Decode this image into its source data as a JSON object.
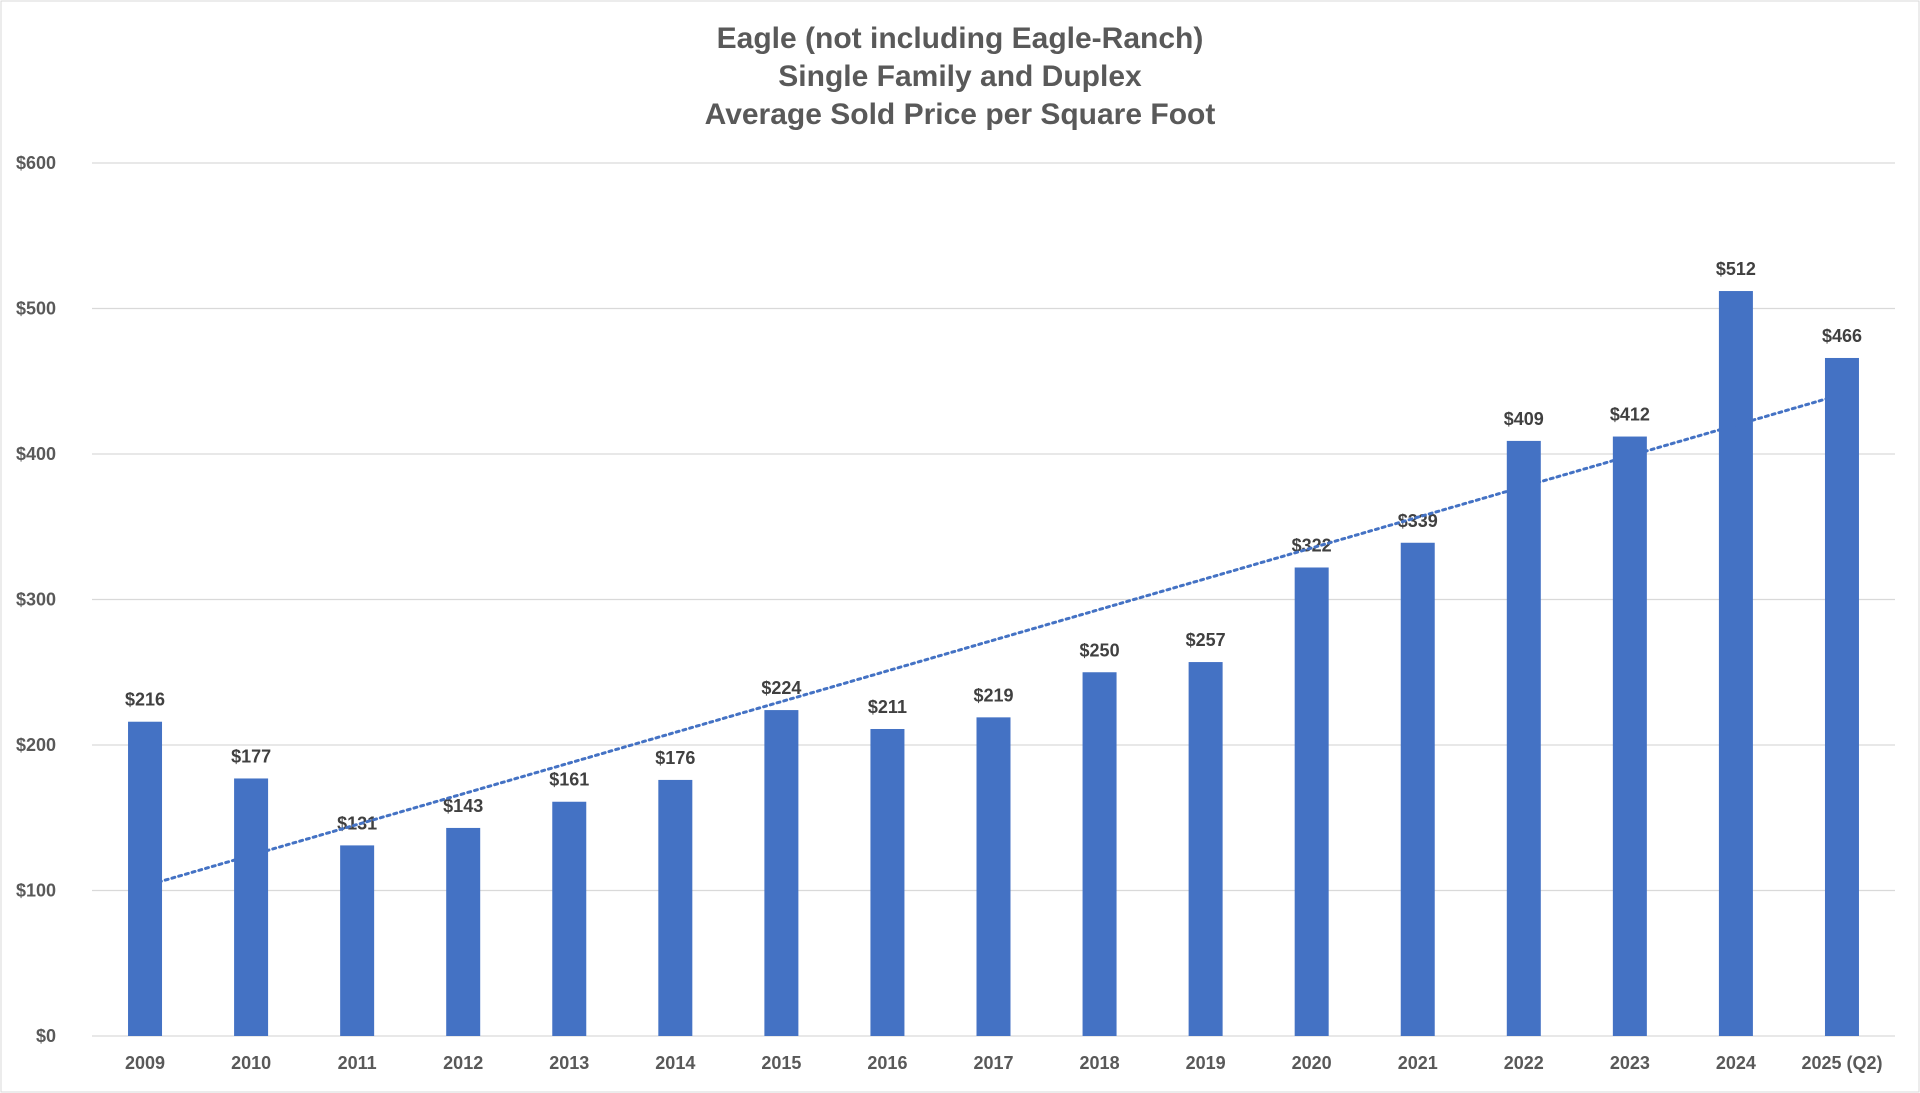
{
  "chart_data": {
    "type": "bar",
    "title": [
      "Eagle (not including Eagle-Ranch)",
      "Single Family and Duplex",
      "Average Sold Price per Square Foot"
    ],
    "categories": [
      "2009",
      "2010",
      "2011",
      "2012",
      "2013",
      "2014",
      "2015",
      "2016",
      "2017",
      "2018",
      "2019",
      "2020",
      "2021",
      "2022",
      "2023",
      "2024",
      "2025 (Q2)"
    ],
    "series": [
      {
        "values": [
          216,
          177,
          131,
          143,
          161,
          176,
          224,
          211,
          219,
          250,
          257,
          322,
          339,
          409,
          412,
          512,
          466
        ],
        "data_labels": [
          "$216",
          "$177",
          "$131",
          "$143",
          "$161",
          "$176",
          "$224",
          "$211",
          "$219",
          "$250",
          "$257",
          "$322",
          "$339",
          "$409",
          "$412",
          "$512",
          "$466"
        ],
        "color": "#4472C4"
      }
    ],
    "trendline": {
      "type": "linear",
      "style": "dotted",
      "color": "#4472C4"
    },
    "y_ticks": [
      0,
      100,
      200,
      300,
      400,
      500,
      600
    ],
    "y_tick_labels": [
      "$0",
      "$100",
      "$200",
      "$300",
      "$400",
      "$500",
      "$600"
    ],
    "ylim": [
      0,
      600
    ],
    "xlabel": "",
    "ylabel": "",
    "grid": true,
    "legend": "none",
    "colors": {
      "bar": "#4472C4",
      "gridline": "#D9D9D9",
      "text": "#595959",
      "data_label": "#404040"
    }
  }
}
